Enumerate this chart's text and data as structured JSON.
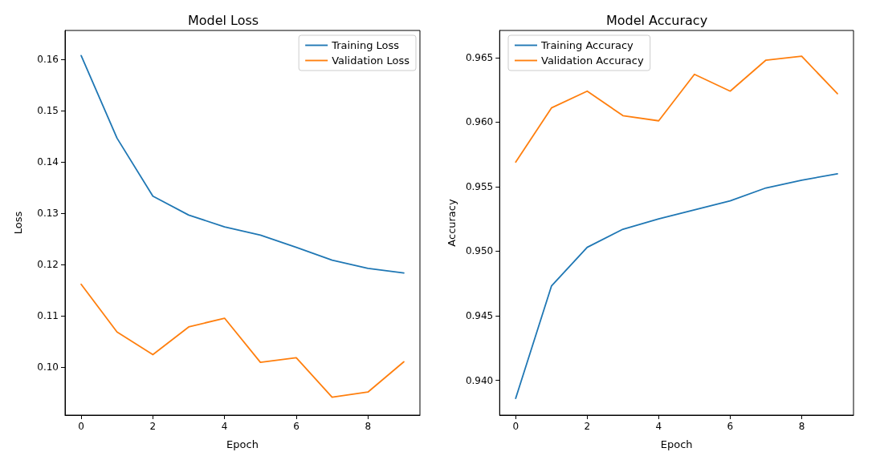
{
  "chart_data": [
    {
      "type": "line",
      "title": "Model Loss",
      "xlabel": "Epoch",
      "ylabel": "Loss",
      "x": [
        0,
        1,
        2,
        3,
        4,
        5,
        6,
        7,
        8,
        9
      ],
      "series": [
        {
          "name": "Training Loss",
          "color": "#1f77b4",
          "values": [
            0.1608,
            0.1447,
            0.1334,
            0.1297,
            0.1274,
            0.1258,
            0.1234,
            0.1209,
            0.1193,
            0.1184
          ]
        },
        {
          "name": "Validation Loss",
          "color": "#ff7f0e",
          "values": [
            0.1162,
            0.1069,
            0.1025,
            0.1079,
            0.1096,
            0.101,
            0.1019,
            0.0942,
            0.0952,
            0.1011
          ]
        }
      ],
      "xlim": [
        -0.45,
        9.45
      ],
      "xticks": [
        0,
        2,
        4,
        6,
        8
      ],
      "ylim": [
        0.0907,
        0.1657
      ],
      "yticks": [
        {
          "value": 0.1,
          "label": "0.10"
        },
        0.11,
        0.12,
        0.13,
        0.14,
        0.15,
        0.16
      ],
      "grid": false,
      "legend": "top right",
      "marker": "none",
      "line_style": "solid"
    },
    {
      "type": "line",
      "title": "Model Accuracy",
      "xlabel": "Epoch",
      "ylabel": "Accuracy",
      "x": [
        0,
        1,
        2,
        3,
        4,
        5,
        6,
        7,
        8,
        9
      ],
      "series": [
        {
          "name": "Training Accuracy",
          "color": "#1f77b4",
          "values": [
            0.9386,
            0.9473,
            0.9503,
            0.9517,
            0.9525,
            0.9532,
            0.9539,
            0.9549,
            0.9555,
            0.956
          ]
        },
        {
          "name": "Validation Accuracy",
          "color": "#ff7f0e",
          "values": [
            0.9569,
            0.9611,
            0.9624,
            0.9605,
            0.9601,
            0.9637,
            0.9624,
            0.9648,
            0.9651,
            0.9622
          ]
        }
      ],
      "xlim": [
        -0.45,
        9.45
      ],
      "xticks": [
        0,
        2,
        4,
        6,
        8
      ],
      "ylim": [
        0.9373,
        0.9671
      ],
      "yticks": [
        {
          "value": 0.94,
          "label": "0.940"
        },
        0.945,
        {
          "value": 0.95,
          "label": "0.950"
        },
        0.955,
        {
          "value": 0.96,
          "label": "0.960"
        },
        0.965
      ],
      "grid": false,
      "legend": "top left",
      "marker": "none",
      "line_style": "solid"
    }
  ]
}
